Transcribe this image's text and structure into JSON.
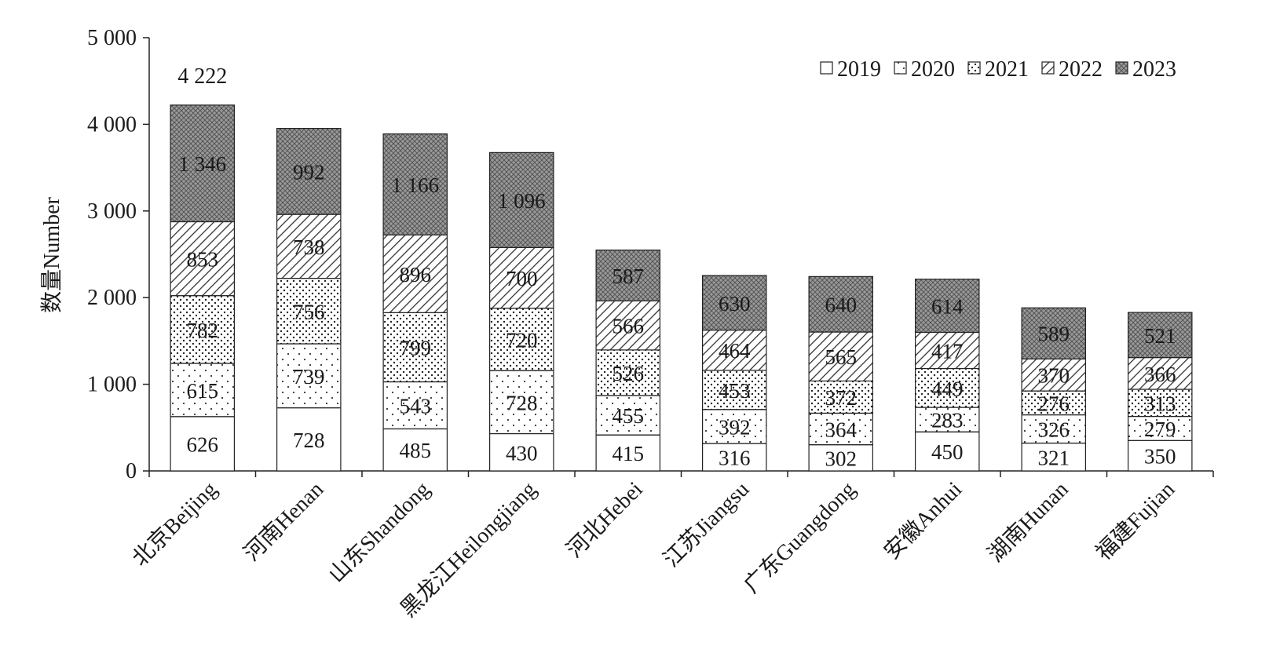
{
  "chart_data": {
    "type": "bar",
    "stacked": true,
    "ylabel": "数量Number",
    "xlabel": "",
    "ylim": [
      0,
      5000
    ],
    "yticks": [
      0,
      1000,
      2000,
      3000,
      4000,
      5000
    ],
    "ytick_labels": [
      "0",
      "1 000",
      "2 000",
      "3 000",
      "4 000",
      "5 000"
    ],
    "legend_position": "top-right",
    "categories": [
      "北京Beijing",
      "河南Henan",
      "山东Shandong",
      "黑龙江Heilongjiang",
      "河北Hebei",
      "江苏Jiangsu",
      "广东Guangdong",
      "安徽Anhui",
      "湖南Hunan",
      "福建Fujian"
    ],
    "series": [
      {
        "name": "2019",
        "pattern": "none",
        "values": [
          626,
          728,
          485,
          430,
          415,
          316,
          302,
          450,
          321,
          350
        ],
        "labels": [
          "626",
          "728",
          "485",
          "430",
          "415",
          "316",
          "302",
          "450",
          "321",
          "350"
        ]
      },
      {
        "name": "2020",
        "pattern": "sparse-dots",
        "values": [
          615,
          739,
          543,
          728,
          455,
          392,
          364,
          283,
          326,
          279
        ],
        "labels": [
          "615",
          "739",
          "543",
          "728",
          "455",
          "392",
          "364",
          "283",
          "326",
          "279"
        ]
      },
      {
        "name": "2021",
        "pattern": "dense-dots",
        "values": [
          782,
          756,
          799,
          720,
          526,
          453,
          372,
          449,
          276,
          313
        ],
        "labels": [
          "782",
          "756",
          "799",
          "720",
          "526",
          "453",
          "372",
          "449",
          "276",
          "313"
        ]
      },
      {
        "name": "2022",
        "pattern": "diagonal-hatch",
        "values": [
          853,
          738,
          896,
          700,
          566,
          464,
          565,
          417,
          370,
          366
        ],
        "labels": [
          "853",
          "738",
          "896",
          "700",
          "566",
          "464",
          "565",
          "417",
          "370",
          "366"
        ]
      },
      {
        "name": "2023",
        "pattern": "crosshatch",
        "values": [
          1346,
          992,
          1166,
          1096,
          587,
          630,
          640,
          614,
          589,
          521
        ],
        "labels": [
          "1 346",
          "992",
          "1 166",
          "1 096",
          "587",
          "630",
          "640",
          "614",
          "589",
          "521"
        ]
      }
    ],
    "annotations": [
      {
        "category": "北京Beijing",
        "text": "4 222",
        "value": 4222
      }
    ]
  }
}
